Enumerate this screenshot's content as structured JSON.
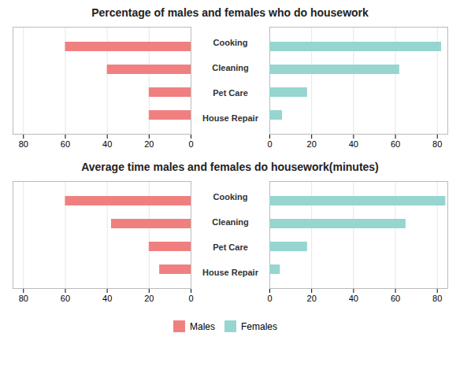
{
  "chart_data": [
    {
      "type": "bar",
      "orientation": "horizontal",
      "title": "Percentage of males and females who do housework",
      "categories": [
        "Cooking",
        "Cleaning",
        "Pet Care",
        "House Repair"
      ],
      "series": [
        {
          "name": "Males",
          "color": "#F08080",
          "values": [
            60,
            40,
            20,
            20
          ]
        },
        {
          "name": "Females",
          "color": "#96D5D0",
          "values": [
            82,
            62,
            18,
            6
          ]
        }
      ],
      "xlim": [
        0,
        85
      ],
      "xticks": [
        0,
        20,
        40,
        60,
        80
      ],
      "grid": true
    },
    {
      "type": "bar",
      "orientation": "horizontal",
      "title": "Average time males and females do housework(minutes)",
      "categories": [
        "Cooking",
        "Cleaning",
        "Pet Care",
        "House Repair"
      ],
      "series": [
        {
          "name": "Males",
          "color": "#F08080",
          "values": [
            60,
            38,
            20,
            15
          ]
        },
        {
          "name": "Females",
          "color": "#96D5D0",
          "values": [
            84,
            65,
            18,
            5
          ]
        }
      ],
      "xlim": [
        0,
        85
      ],
      "xticks": [
        0,
        20,
        40,
        60,
        80
      ],
      "grid": true,
      "legend": "bottom"
    }
  ]
}
